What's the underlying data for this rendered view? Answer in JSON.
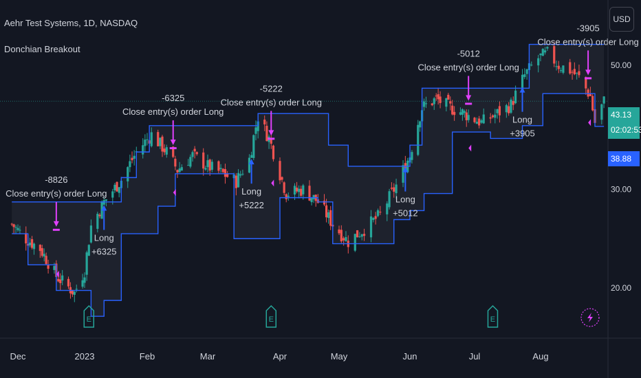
{
  "header": {
    "title": "Aehr Test Systems, 1D, NASDAQ",
    "study": "Donchian Breakout"
  },
  "currency_button": "USD",
  "price_tags": {
    "last": "43.13",
    "countdown": "02:02:53",
    "donchian_low": "38.88"
  },
  "colors": {
    "background": "#131722",
    "up": "#26a69a",
    "down": "#ef5350",
    "channel": "#2962ff",
    "channel_fill": "#1e222d",
    "exit": "#e040fb",
    "entry": "#2962ff",
    "text": "#d1d4dc",
    "earnings": "#26a69a",
    "grid_line": "#2a2e39"
  },
  "chart_data": {
    "type": "candlestick",
    "y_ticks": [
      "50.00",
      "30.00",
      "20.00"
    ],
    "y_tick_values": [
      50,
      30,
      20
    ],
    "y_scale": "log",
    "ylim": [
      14.6,
      56
    ],
    "x_ticks": [
      "Dec",
      "2023",
      "Feb",
      "Mar",
      "Apr",
      "May",
      "Jun",
      "Jul",
      "Aug"
    ],
    "x_tick_dates": [
      "2022-12-01",
      "2023-01-03",
      "2023-02-01",
      "2023-03-01",
      "2023-04-03",
      "2023-05-01",
      "2023-06-01",
      "2023-07-03",
      "2023-08-01"
    ],
    "price_line": 43.13,
    "key_points": [
      {
        "date": "2022-11-28",
        "close": 26.0
      },
      {
        "date": "2022-12-05",
        "close": 24.5
      },
      {
        "date": "2022-12-12",
        "close": 23.5
      },
      {
        "date": "2022-12-20",
        "close": 21.0
      },
      {
        "date": "2022-12-29",
        "close": 19.6
      },
      {
        "date": "2023-01-03",
        "close": 21.5
      },
      {
        "date": "2023-01-06",
        "close": 25.8
      },
      {
        "date": "2023-01-12",
        "close": 28.5
      },
      {
        "date": "2023-01-20",
        "close": 31.2
      },
      {
        "date": "2023-01-27",
        "close": 35.0
      },
      {
        "date": "2023-02-03",
        "close": 37.6
      },
      {
        "date": "2023-02-10",
        "close": 35.0
      },
      {
        "date": "2023-02-15",
        "close": 32.5
      },
      {
        "date": "2023-02-22",
        "close": 34.5
      },
      {
        "date": "2023-03-01",
        "close": 33.0
      },
      {
        "date": "2023-03-08",
        "close": 32.0
      },
      {
        "date": "2023-03-14",
        "close": 31.0
      },
      {
        "date": "2023-03-20",
        "close": 34.0
      },
      {
        "date": "2023-03-24",
        "close": 40.5
      },
      {
        "date": "2023-03-29",
        "close": 37.0
      },
      {
        "date": "2023-04-03",
        "close": 32.0
      },
      {
        "date": "2023-04-06",
        "close": 29.5
      },
      {
        "date": "2023-04-14",
        "close": 30.0
      },
      {
        "date": "2023-04-21",
        "close": 28.5
      },
      {
        "date": "2023-04-28",
        "close": 26.0
      },
      {
        "date": "2023-05-05",
        "close": 24.2
      },
      {
        "date": "2023-05-12",
        "close": 25.5
      },
      {
        "date": "2023-05-19",
        "close": 27.0
      },
      {
        "date": "2023-05-26",
        "close": 30.5
      },
      {
        "date": "2023-06-01",
        "close": 34.5
      },
      {
        "date": "2023-06-07",
        "close": 42.0
      },
      {
        "date": "2023-06-14",
        "close": 43.5
      },
      {
        "date": "2023-06-21",
        "close": 42.0
      },
      {
        "date": "2023-06-28",
        "close": 41.0
      },
      {
        "date": "2023-07-06",
        "close": 39.5
      },
      {
        "date": "2023-07-13",
        "close": 41.0
      },
      {
        "date": "2023-07-19",
        "close": 42.5
      },
      {
        "date": "2023-07-25",
        "close": 48.0
      },
      {
        "date": "2023-07-31",
        "close": 51.5
      },
      {
        "date": "2023-08-04",
        "close": 52.5
      },
      {
        "date": "2023-08-09",
        "close": 50.0
      },
      {
        "date": "2023-08-14",
        "close": 49.0
      },
      {
        "date": "2023-08-18",
        "close": 47.5
      },
      {
        "date": "2023-08-23",
        "close": 44.0
      },
      {
        "date": "2023-08-25",
        "close": 39.5
      },
      {
        "date": "2023-08-29",
        "close": 43.13
      }
    ],
    "channel_upper": [
      {
        "date": "2022-11-28",
        "value": 28.5
      },
      {
        "date": "2023-01-12",
        "value": 28.5
      },
      {
        "date": "2023-01-20",
        "value": 31.5
      },
      {
        "date": "2023-01-27",
        "value": 35.0
      },
      {
        "date": "2023-02-02",
        "value": 39.0
      },
      {
        "date": "2023-03-20",
        "value": 39.0
      },
      {
        "date": "2023-03-24",
        "value": 41.0
      },
      {
        "date": "2023-04-14",
        "value": 41.0
      },
      {
        "date": "2023-04-26",
        "value": 36.0
      },
      {
        "date": "2023-05-05",
        "value": 33.0
      },
      {
        "date": "2023-05-26",
        "value": 33.0
      },
      {
        "date": "2023-06-01",
        "value": 36.0
      },
      {
        "date": "2023-06-07",
        "value": 45.5
      },
      {
        "date": "2023-07-21",
        "value": 45.5
      },
      {
        "date": "2023-07-27",
        "value": 54.5
      },
      {
        "date": "2023-08-31",
        "value": 54.5
      }
    ],
    "channel_lower": [
      {
        "date": "2022-11-28",
        "value": 25.0
      },
      {
        "date": "2022-12-06",
        "value": 22.0
      },
      {
        "date": "2022-12-20",
        "value": 19.8
      },
      {
        "date": "2023-01-06",
        "value": 17.8
      },
      {
        "date": "2023-01-12",
        "value": 19.0
      },
      {
        "date": "2023-01-20",
        "value": 25.0
      },
      {
        "date": "2023-02-06",
        "value": 28.0
      },
      {
        "date": "2023-02-14",
        "value": 32.0
      },
      {
        "date": "2023-03-07",
        "value": 32.0
      },
      {
        "date": "2023-03-13",
        "value": 24.5
      },
      {
        "date": "2023-04-03",
        "value": 29.0
      },
      {
        "date": "2023-04-21",
        "value": 28.5
      },
      {
        "date": "2023-04-28",
        "value": 24.0
      },
      {
        "date": "2023-05-17",
        "value": 24.0
      },
      {
        "date": "2023-05-25",
        "value": 26.5
      },
      {
        "date": "2023-06-01",
        "value": 27.5
      },
      {
        "date": "2023-06-08",
        "value": 29.5
      },
      {
        "date": "2023-06-22",
        "value": 38.0
      },
      {
        "date": "2023-07-10",
        "value": 37.0
      },
      {
        "date": "2023-07-24",
        "value": 39.0
      },
      {
        "date": "2023-08-02",
        "value": 44.5
      },
      {
        "date": "2023-08-25",
        "value": 38.88
      },
      {
        "date": "2023-08-29",
        "value": 38.88
      }
    ],
    "exits": [
      {
        "date": "2022-12-20",
        "price": 25.3,
        "pnl": "-8826",
        "label": "Close entry(s) order Long"
      },
      {
        "date": "2023-02-13",
        "price": 35.4,
        "pnl": "-6325",
        "label": "Close entry(s) order Long"
      },
      {
        "date": "2023-03-30",
        "price": 36.8,
        "pnl": "-5222",
        "label": "Close entry(s) order Long"
      },
      {
        "date": "2023-06-30",
        "price": 42.5,
        "pnl": "-5012",
        "label": "Close entry(s) order Long"
      },
      {
        "date": "2023-08-22",
        "price": 47.2,
        "pnl": "-3905",
        "label": "Close entry(s) order Long"
      }
    ],
    "entries": [
      {
        "date": "2023-01-12",
        "price": 28.6,
        "label": "Long",
        "pnl": "+6325"
      },
      {
        "date": "2023-03-21",
        "price": 34.6,
        "label": "Long",
        "pnl": "+5222"
      },
      {
        "date": "2023-05-30",
        "price": 33.5,
        "label": "Long",
        "pnl": "+5012"
      },
      {
        "date": "2023-07-24",
        "price": 46.5,
        "label": "Long",
        "pnl": "+3905"
      }
    ],
    "earnings_dates": [
      "2023-01-05",
      "2023-03-30",
      "2023-07-11"
    ],
    "earnings_label": "E"
  }
}
